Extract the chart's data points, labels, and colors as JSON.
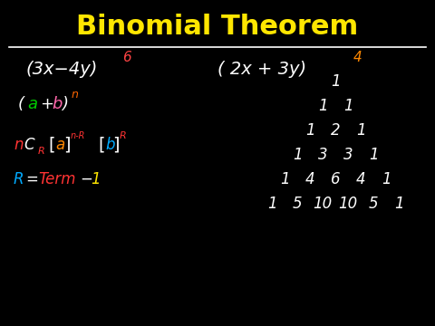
{
  "background_color": "#000000",
  "title": "Binomial Theorem",
  "title_color": "#FFE600",
  "title_fontsize": 22,
  "line_color": "#FFFFFF",
  "left_exp1_color": "#FF4444",
  "left_exp2_color": "#FF8800",
  "pascal": [
    [
      1
    ],
    [
      1,
      1
    ],
    [
      1,
      2,
      1
    ],
    [
      1,
      3,
      3,
      1
    ],
    [
      1,
      4,
      6,
      4,
      1
    ],
    [
      1,
      5,
      10,
      10,
      5,
      1
    ]
  ],
  "pascal_color": "#FFFFFF"
}
